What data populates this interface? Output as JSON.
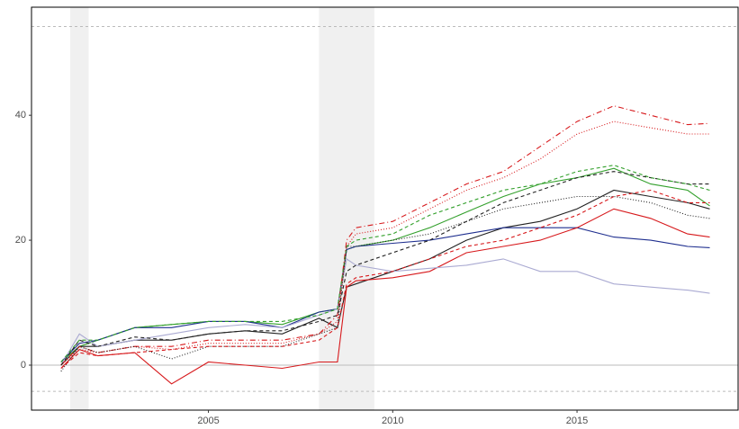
{
  "chart_data": {
    "type": "line",
    "x": [
      2001,
      2001.5,
      2002,
      2003,
      2004,
      2005,
      2006,
      2007,
      2008,
      2008.5,
      2008.75,
      2009,
      2010,
      2011,
      2012,
      2013,
      2014,
      2015,
      2016,
      2017,
      2018,
      2018.6
    ],
    "xlim": [
      2000.2,
      2019.37
    ],
    "xticks": [
      2005,
      2010,
      2015
    ],
    "ylim": [
      -7.2,
      57.3
    ],
    "yticks": [
      0,
      20,
      40
    ],
    "hlines": [
      {
        "value": 54.2,
        "color": "#bbbbbb",
        "dash": "3,3"
      },
      {
        "value": -4.2,
        "color": "#bbbbbb",
        "dash": "3,3"
      },
      {
        "value": 0,
        "color": "#bbbbbb",
        "dash": ""
      }
    ],
    "shaded": [
      [
        2001.25,
        2001.75
      ],
      [
        2008.0,
        2009.5
      ]
    ],
    "series": [
      {
        "color": "#33a02c",
        "dash": "",
        "values": [
          0.5,
          3,
          4,
          6,
          6.5,
          7,
          7,
          6.5,
          8.5,
          9,
          18.5,
          19,
          20,
          22,
          24.5,
          27,
          29,
          30,
          31.5,
          29,
          28,
          25.5
        ]
      },
      {
        "color": "#222222",
        "dash": "",
        "values": [
          0,
          3,
          3,
          4,
          4,
          5,
          5.5,
          5,
          7.5,
          6,
          12.5,
          13,
          15,
          17,
          20,
          22,
          23,
          25,
          28,
          27,
          26,
          25
        ]
      },
      {
        "color": "#1f2f8f",
        "dash": "",
        "values": [
          0.5,
          3.5,
          4,
          6,
          6,
          7,
          7,
          6,
          8.5,
          9,
          18.5,
          19,
          19.5,
          20,
          21,
          22,
          22,
          22,
          20.5,
          20,
          19,
          18.8
        ]
      },
      {
        "color": "#d7191c",
        "dash": "",
        "values": [
          -0.5,
          2.5,
          1.5,
          2,
          -3,
          0.5,
          0,
          -0.5,
          0.5,
          0.5,
          12.5,
          13.5,
          14,
          15,
          18,
          19,
          20,
          22,
          25,
          23.5,
          21,
          20.5
        ]
      },
      {
        "color": "#aaaad2",
        "dash": "",
        "values": [
          0,
          5,
          3,
          4,
          5,
          6,
          6.5,
          6,
          8,
          9,
          17,
          16,
          15,
          15.5,
          16,
          17,
          15,
          15,
          13,
          12.5,
          12,
          11.5
        ]
      },
      {
        "color": "#d7191c",
        "dash": "6,3,1,3",
        "values": [
          0,
          3,
          2,
          3,
          3,
          4,
          4,
          4,
          5,
          8,
          20,
          22,
          23,
          26,
          29,
          31,
          35,
          39,
          41.5,
          40,
          38.5,
          38.7
        ]
      },
      {
        "color": "#d7191c",
        "dash": "1,2",
        "values": [
          0,
          2.5,
          2,
          3,
          2.5,
          3.5,
          3.5,
          3.5,
          5,
          7,
          19,
          21,
          22,
          25,
          28,
          30,
          33,
          37,
          39,
          38,
          37,
          37
        ]
      },
      {
        "color": "#222222",
        "dash": "4,3",
        "values": [
          0,
          4,
          3,
          4.5,
          4,
          5,
          5.5,
          5.5,
          7,
          8,
          15,
          16,
          18,
          20,
          23,
          26,
          28,
          30,
          31,
          30,
          29,
          29
        ]
      },
      {
        "color": "#33a02c",
        "dash": "4,3",
        "values": [
          0.5,
          4,
          4,
          6,
          6.5,
          7,
          7,
          7,
          8,
          9,
          19,
          20,
          21,
          24,
          26,
          28,
          29,
          31,
          32,
          30,
          29,
          28
        ]
      },
      {
        "color": "#222222",
        "dash": "1,2",
        "values": [
          -1,
          3,
          2,
          3,
          1,
          3,
          3,
          3,
          5,
          6,
          19,
          19,
          20,
          21,
          23,
          25,
          26,
          27,
          27,
          26,
          24,
          23.5
        ]
      },
      {
        "color": "#d7191c",
        "dash": "4,3",
        "values": [
          -0.5,
          2,
          1.5,
          2,
          2.5,
          3,
          3,
          3,
          4,
          6,
          13,
          14,
          15,
          17,
          19,
          20,
          22,
          24,
          27,
          28,
          26,
          26
        ]
      }
    ]
  }
}
